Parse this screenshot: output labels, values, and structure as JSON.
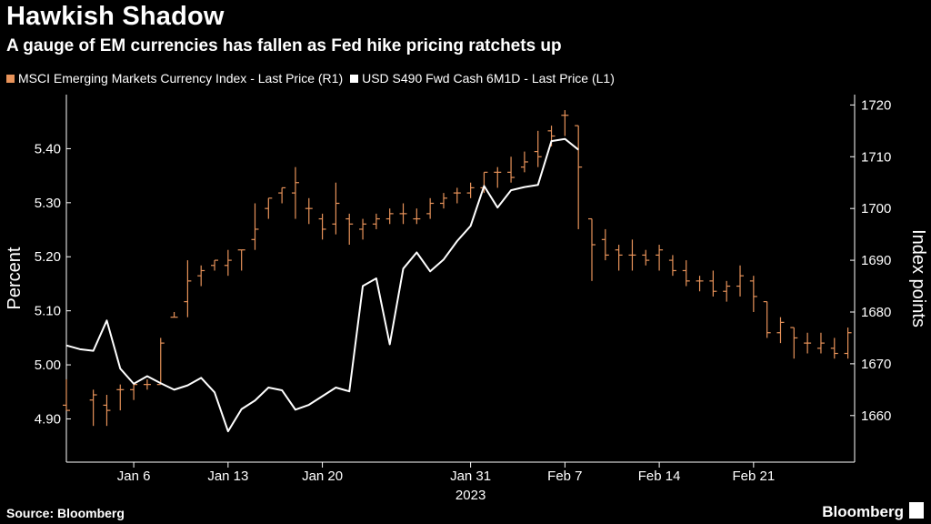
{
  "header": {
    "title": "Hawkish Shadow",
    "subtitle": "A gauge of EM currencies has fallen as Fed hike pricing ratchets up"
  },
  "footer": {
    "source": "Source: Bloomberg",
    "brand": "Bloomberg"
  },
  "colors": {
    "orange": "#e8935a",
    "white": "#ffffff",
    "background": "#000000"
  },
  "chart_data": {
    "type": "line",
    "legend_position": "top-left",
    "grid": false,
    "x_axis": {
      "ticks": [
        "Jan 6",
        "Jan 13",
        "Jan 20",
        "Jan 31",
        "Feb 7",
        "Feb 14",
        "Feb 21"
      ],
      "tick_days": [
        6,
        13,
        20,
        31,
        38,
        45,
        52
      ],
      "year_label": "2023",
      "range_days": [
        1,
        57
      ]
    },
    "left_axis": {
      "label": "Percent",
      "ylim": [
        4.82,
        5.5
      ],
      "ticks": [
        "4.90",
        "5.00",
        "5.10",
        "5.20",
        "5.30",
        "5.40"
      ]
    },
    "right_axis": {
      "label": "Index points",
      "ylim": [
        1651,
        1722
      ],
      "ticks": [
        "1660",
        "1670",
        "1680",
        "1690",
        "1700",
        "1710",
        "1720"
      ]
    },
    "series": [
      {
        "name": "MSCI Emerging Markets Currency Index - Last Price (R1)",
        "axis": "right",
        "style": "ohlc-bars",
        "color": "#e8935a",
        "points": [
          {
            "x": 1,
            "o": 1662,
            "h": 1667,
            "l": 1661,
            "c": 1661
          },
          {
            "x": 3,
            "o": 1663,
            "h": 1665,
            "l": 1658,
            "c": 1664
          },
          {
            "x": 4,
            "o": 1662,
            "h": 1664,
            "l": 1658,
            "c": 1661
          },
          {
            "x": 5,
            "o": 1665,
            "h": 1666,
            "l": 1661,
            "c": 1665
          },
          {
            "x": 6,
            "o": 1665,
            "h": 1666,
            "l": 1663,
            "c": 1666
          },
          {
            "x": 7,
            "o": 1666,
            "h": 1667,
            "l": 1665,
            "c": 1666
          },
          {
            "x": 8,
            "o": 1666,
            "h": 1675,
            "l": 1666,
            "c": 1674
          },
          {
            "x": 9,
            "o": 1679,
            "h": 1680,
            "l": 1679,
            "c": 1679
          },
          {
            "x": 10,
            "o": 1682,
            "h": 1690,
            "l": 1679,
            "c": 1686
          },
          {
            "x": 11,
            "o": 1687,
            "h": 1689,
            "l": 1685,
            "c": 1688
          },
          {
            "x": 12,
            "o": 1689,
            "h": 1690,
            "l": 1688,
            "c": 1690
          },
          {
            "x": 13,
            "o": 1689,
            "h": 1692,
            "l": 1687,
            "c": 1690
          },
          {
            "x": 14,
            "o": 1692,
            "h": 1692,
            "l": 1688,
            "c": 1692
          },
          {
            "x": 15,
            "o": 1694,
            "h": 1701,
            "l": 1692,
            "c": 1696
          },
          {
            "x": 16,
            "o": 1700,
            "h": 1702,
            "l": 1698,
            "c": 1702
          },
          {
            "x": 17,
            "o": 1703,
            "h": 1704,
            "l": 1701,
            "c": 1704
          },
          {
            "x": 18,
            "o": 1703,
            "h": 1708,
            "l": 1698,
            "c": 1705
          },
          {
            "x": 19,
            "o": 1700,
            "h": 1702,
            "l": 1697,
            "c": 1700
          },
          {
            "x": 20,
            "o": 1698,
            "h": 1699,
            "l": 1694,
            "c": 1696
          },
          {
            "x": 21,
            "o": 1697,
            "h": 1705,
            "l": 1695,
            "c": 1701
          },
          {
            "x": 22,
            "o": 1698,
            "h": 1699,
            "l": 1693,
            "c": 1697
          },
          {
            "x": 23,
            "o": 1696,
            "h": 1698,
            "l": 1694,
            "c": 1697
          },
          {
            "x": 24,
            "o": 1697,
            "h": 1699,
            "l": 1696,
            "c": 1698
          },
          {
            "x": 25,
            "o": 1698,
            "h": 1700,
            "l": 1697,
            "c": 1699
          },
          {
            "x": 26,
            "o": 1699,
            "h": 1701,
            "l": 1697,
            "c": 1699
          },
          {
            "x": 27,
            "o": 1698,
            "h": 1700,
            "l": 1697,
            "c": 1698
          },
          {
            "x": 28,
            "o": 1699,
            "h": 1702,
            "l": 1698,
            "c": 1701
          },
          {
            "x": 29,
            "o": 1701,
            "h": 1703,
            "l": 1700,
            "c": 1702
          },
          {
            "x": 30,
            "o": 1703,
            "h": 1704,
            "l": 1701,
            "c": 1703
          },
          {
            "x": 31,
            "o": 1703,
            "h": 1705,
            "l": 1702,
            "c": 1704
          },
          {
            "x": 32,
            "o": 1704,
            "h": 1707,
            "l": 1703,
            "c": 1707
          },
          {
            "x": 33,
            "o": 1707,
            "h": 1708,
            "l": 1704,
            "c": 1707
          },
          {
            "x": 34,
            "o": 1707,
            "h": 1710,
            "l": 1705,
            "c": 1706
          },
          {
            "x": 35,
            "o": 1708,
            "h": 1711,
            "l": 1707,
            "c": 1709
          },
          {
            "x": 36,
            "o": 1711,
            "h": 1715,
            "l": 1708,
            "c": 1710
          },
          {
            "x": 37,
            "o": 1715,
            "h": 1716,
            "l": 1712,
            "c": 1714
          },
          {
            "x": 38,
            "o": 1718,
            "h": 1719,
            "l": 1714,
            "c": 1718
          },
          {
            "x": 39,
            "o": 1716,
            "h": 1716,
            "l": 1696,
            "c": 1708
          },
          {
            "x": 40,
            "o": 1698,
            "h": 1698,
            "l": 1686,
            "c": 1693
          },
          {
            "x": 41,
            "o": 1694,
            "h": 1696,
            "l": 1690,
            "c": 1691
          },
          {
            "x": 42,
            "o": 1692,
            "h": 1693,
            "l": 1688,
            "c": 1691
          },
          {
            "x": 43,
            "o": 1691,
            "h": 1694,
            "l": 1688,
            "c": 1691
          },
          {
            "x": 44,
            "o": 1691,
            "h": 1692,
            "l": 1689,
            "c": 1690
          },
          {
            "x": 45,
            "o": 1691,
            "h": 1693,
            "l": 1688,
            "c": 1692
          },
          {
            "x": 46,
            "o": 1690,
            "h": 1691,
            "l": 1687,
            "c": 1688
          },
          {
            "x": 47,
            "o": 1688,
            "h": 1690,
            "l": 1685,
            "c": 1686
          },
          {
            "x": 48,
            "o": 1686,
            "h": 1687,
            "l": 1684,
            "c": 1686
          },
          {
            "x": 49,
            "o": 1686,
            "h": 1688,
            "l": 1683,
            "c": 1684
          },
          {
            "x": 50,
            "o": 1684,
            "h": 1686,
            "l": 1682,
            "c": 1685
          },
          {
            "x": 51,
            "o": 1685,
            "h": 1689,
            "l": 1683,
            "c": 1687
          },
          {
            "x": 52,
            "o": 1686,
            "h": 1687,
            "l": 1680,
            "c": 1683
          },
          {
            "x": 53,
            "o": 1682,
            "h": 1682,
            "l": 1675,
            "c": 1676
          },
          {
            "x": 54,
            "o": 1676,
            "h": 1679,
            "l": 1674,
            "c": 1678
          },
          {
            "x": 55,
            "o": 1677,
            "h": 1677,
            "l": 1671,
            "c": 1675
          },
          {
            "x": 56,
            "o": 1674,
            "h": 1676,
            "l": 1672,
            "c": 1674
          },
          {
            "x": 57,
            "o": 1673,
            "h": 1676,
            "l": 1672,
            "c": 1674
          },
          {
            "x": 58,
            "o": 1673,
            "h": 1675,
            "l": 1671,
            "c": 1672
          },
          {
            "x": 59,
            "o": 1672,
            "h": 1677,
            "l": 1671,
            "c": 1676
          }
        ]
      },
      {
        "name": "USD S490 Fwd Cash 6M1D - Last Price (L1)",
        "axis": "left",
        "style": "line",
        "color": "#ffffff",
        "points": [
          {
            "x": 1,
            "y": 5.036
          },
          {
            "x": 2,
            "y": 5.029
          },
          {
            "x": 3,
            "y": 5.026
          },
          {
            "x": 4,
            "y": 5.082
          },
          {
            "x": 5,
            "y": 4.993
          },
          {
            "x": 6,
            "y": 4.965
          },
          {
            "x": 7,
            "y": 4.979
          },
          {
            "x": 8,
            "y": 4.966
          },
          {
            "x": 9,
            "y": 4.954
          },
          {
            "x": 10,
            "y": 4.962
          },
          {
            "x": 11,
            "y": 4.976
          },
          {
            "x": 12,
            "y": 4.949
          },
          {
            "x": 13,
            "y": 4.877
          },
          {
            "x": 14,
            "y": 4.918
          },
          {
            "x": 15,
            "y": 4.934
          },
          {
            "x": 16,
            "y": 4.958
          },
          {
            "x": 17,
            "y": 4.953
          },
          {
            "x": 18,
            "y": 4.917
          },
          {
            "x": 19,
            "y": 4.926
          },
          {
            "x": 20,
            "y": 4.942
          },
          {
            "x": 21,
            "y": 4.958
          },
          {
            "x": 22,
            "y": 4.951
          },
          {
            "x": 23,
            "y": 5.146
          },
          {
            "x": 24,
            "y": 5.16
          },
          {
            "x": 25,
            "y": 5.038
          },
          {
            "x": 26,
            "y": 5.178
          },
          {
            "x": 27,
            "y": 5.208
          },
          {
            "x": 28,
            "y": 5.173
          },
          {
            "x": 29,
            "y": 5.195
          },
          {
            "x": 30,
            "y": 5.229
          },
          {
            "x": 31,
            "y": 5.257
          },
          {
            "x": 32,
            "y": 5.331
          },
          {
            "x": 33,
            "y": 5.291
          },
          {
            "x": 34,
            "y": 5.323
          },
          {
            "x": 35,
            "y": 5.329
          },
          {
            "x": 36,
            "y": 5.333
          },
          {
            "x": 37,
            "y": 5.414
          },
          {
            "x": 38,
            "y": 5.418
          },
          {
            "x": 39,
            "y": 5.398
          }
        ]
      }
    ]
  }
}
